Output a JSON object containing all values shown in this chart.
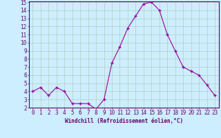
{
  "x": [
    0,
    1,
    2,
    3,
    4,
    5,
    6,
    7,
    8,
    9,
    10,
    11,
    12,
    13,
    14,
    15,
    16,
    17,
    18,
    19,
    20,
    21,
    22,
    23
  ],
  "y": [
    4.0,
    4.5,
    3.5,
    4.5,
    4.0,
    2.5,
    2.5,
    2.5,
    1.8,
    3.0,
    7.5,
    9.5,
    11.8,
    13.3,
    14.8,
    15.0,
    14.0,
    11.0,
    9.0,
    7.0,
    6.5,
    6.0,
    4.8,
    3.5
  ],
  "line_color": "#990099",
  "marker": "+",
  "marker_size": 3,
  "marker_linewidth": 1.0,
  "line_width": 0.8,
  "bg_color": "#cceeff",
  "grid_color": "#aabb99",
  "xlabel": "Windchill (Refroidissement éolien,°C)",
  "xlabel_fontsize": 5.5,
  "tick_fontsize": 5.5,
  "ylim": [
    2,
    15
  ],
  "xlim": [
    -0.5,
    23.5
  ],
  "yticks": [
    2,
    3,
    4,
    5,
    6,
    7,
    8,
    9,
    10,
    11,
    12,
    13,
    14,
    15
  ],
  "xticks": [
    0,
    1,
    2,
    3,
    4,
    5,
    6,
    7,
    8,
    9,
    10,
    11,
    12,
    13,
    14,
    15,
    16,
    17,
    18,
    19,
    20,
    21,
    22,
    23
  ],
  "spine_color": "#660066",
  "text_color": "#660066",
  "grid_alpha": 0.8,
  "grid_linewidth": 0.4
}
